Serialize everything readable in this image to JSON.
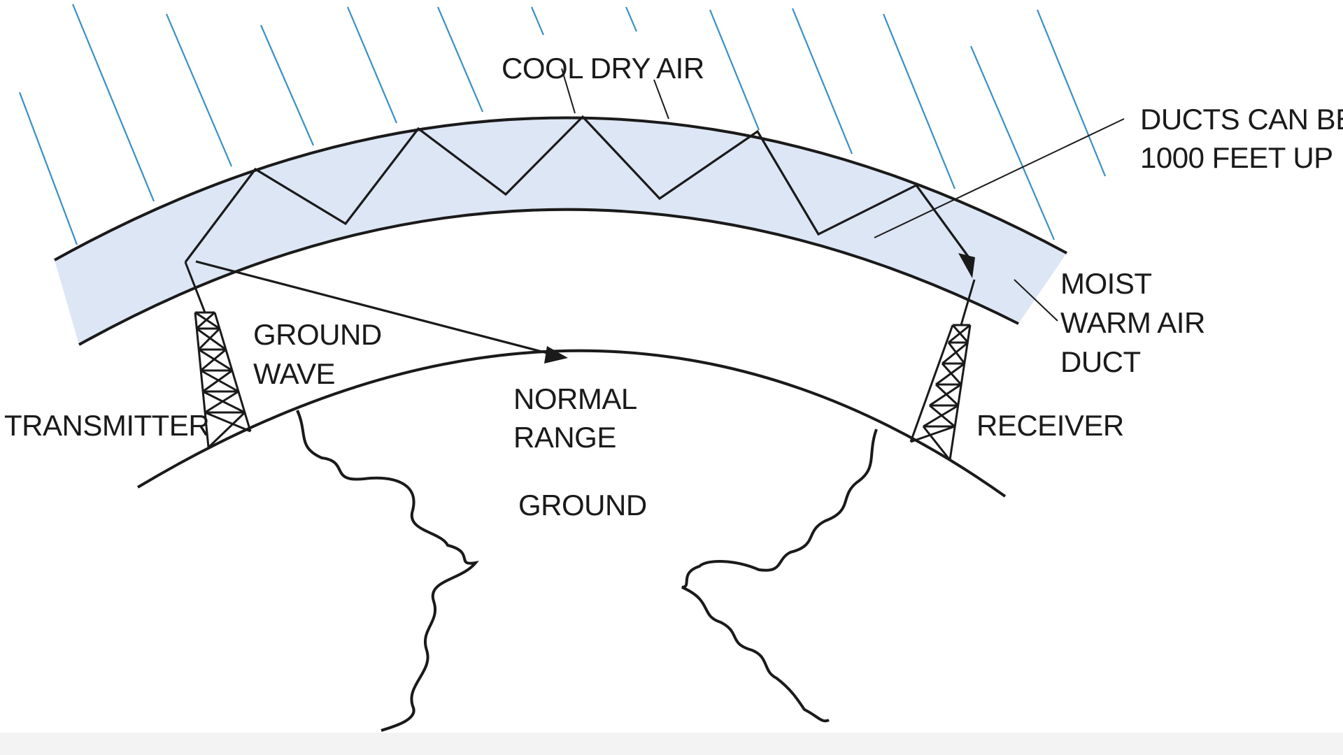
{
  "labels": {
    "cool_dry_air": "COOL DRY AIR",
    "ducts_line1": "DUCTS CAN BE",
    "ducts_line2": "1000 FEET UP",
    "moist_line1": "MOIST",
    "moist_line2": "WARM AIR",
    "moist_line3": "DUCT",
    "ground_wave_line1": "GROUND",
    "ground_wave_line2": "WAVE",
    "transmitter": "TRANSMITTER",
    "receiver": "RECEIVER",
    "normal_range_line1": "NORMAL",
    "normal_range_line2": "RANGE",
    "ground": "GROUND"
  },
  "colors": {
    "duct_fill": "#dde6f5",
    "cool_air_hatch": "#3a8fc4",
    "line": "#1a1a1a",
    "background": "#ffffff"
  }
}
